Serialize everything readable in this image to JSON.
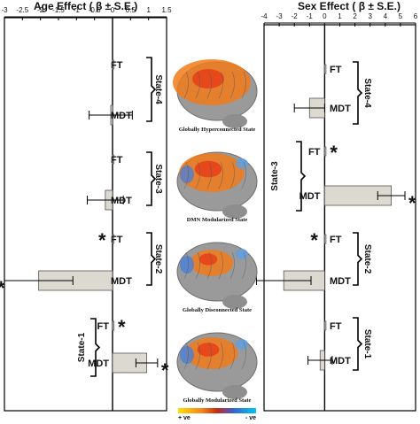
{
  "chart_data": [
    {
      "type": "bar",
      "orientation": "horizontal",
      "title": "Age Effect ( β ± S.E.)",
      "xlim": [
        -3,
        1.5
      ],
      "ticks": [
        "-3",
        "-2.5",
        "-2",
        "-1.5",
        "-1",
        "-0.5",
        "0",
        "0.5",
        "1",
        "1.5"
      ],
      "states": [
        {
          "label": "State-4",
          "bars": [
            {
              "name": "FT",
              "value": 0.0,
              "se": 0.0,
              "sig": false
            },
            {
              "name": "MDT",
              "value": -0.05,
              "se": 0.6,
              "sig": false
            }
          ]
        },
        {
          "label": "State-3",
          "bars": [
            {
              "name": "FT",
              "value": 0.0,
              "se": 0.0,
              "sig": false
            },
            {
              "name": "MDT",
              "value": -0.2,
              "se": 0.5,
              "sig": false
            }
          ]
        },
        {
          "label": "State-2",
          "bars": [
            {
              "name": "FT",
              "value": 0.02,
              "se": 0.0,
              "sig": true
            },
            {
              "name": "MDT",
              "value": -2.05,
              "se": 0.95,
              "sig": true
            }
          ]
        },
        {
          "label": "State-1",
          "bars": [
            {
              "name": "FT",
              "value": 0.02,
              "se": 0.0,
              "sig": true
            },
            {
              "name": "MDT",
              "value": 0.95,
              "se": 0.3,
              "sig": true
            }
          ]
        }
      ]
    },
    {
      "type": "bar",
      "orientation": "horizontal",
      "title": "Sex Effect ( β ± S.E.)",
      "xlim": [
        -4,
        6
      ],
      "ticks": [
        "-4",
        "-3",
        "-2",
        "-1",
        "0",
        "1",
        "2",
        "3",
        "4",
        "5",
        "6"
      ],
      "states": [
        {
          "label": "State-4",
          "bars": [
            {
              "name": "FT",
              "value": 0.0,
              "se": 0.0,
              "sig": false
            },
            {
              "name": "MDT",
              "value": -1.0,
              "se": 1.0,
              "sig": false
            }
          ]
        },
        {
          "label": "State-3",
          "bars": [
            {
              "name": "FT",
              "value": 0.05,
              "se": 0.0,
              "sig": true
            },
            {
              "name": "MDT",
              "value": 4.4,
              "se": 0.9,
              "sig": true
            }
          ]
        },
        {
          "label": "State-2",
          "bars": [
            {
              "name": "FT",
              "value": 0.05,
              "se": 0.0,
              "sig": true
            },
            {
              "name": "MDT",
              "value": -2.7,
              "se": 1.8,
              "sig": false
            }
          ]
        },
        {
          "label": "State-1",
          "bars": [
            {
              "name": "FT",
              "value": 0.0,
              "se": 0.0,
              "sig": false
            },
            {
              "name": "MDT",
              "value": -0.3,
              "se": 0.8,
              "sig": false
            }
          ]
        }
      ]
    }
  ],
  "brain_panels": [
    {
      "caption": "Globally Hyperconnected State"
    },
    {
      "caption": "DMN Modularized State"
    },
    {
      "caption": "Globally Disconnected State"
    },
    {
      "caption": "Globally Modularized State"
    }
  ],
  "colorbar": {
    "pos_label": "+ ve",
    "neg_label": "- ve"
  },
  "colors": {
    "bar_fill": "#dcd9d0",
    "bar_stroke": "#555555",
    "axis": "#000000"
  }
}
